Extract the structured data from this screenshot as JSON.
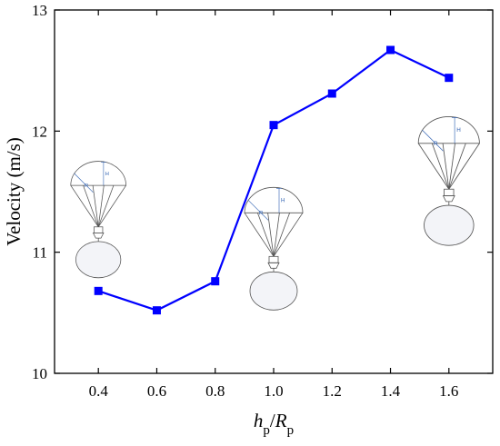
{
  "chart_data": {
    "type": "line",
    "x": [
      0.4,
      0.6,
      0.8,
      1.0,
      1.2,
      1.4,
      1.6
    ],
    "x_tick_labels": [
      "0.4",
      "0.6",
      "0.8",
      "1.0",
      "1.2",
      "1.4",
      "1.6"
    ],
    "xlim": [
      0.25,
      1.75
    ],
    "ylim": [
      10,
      13
    ],
    "y_ticks": [
      10,
      11,
      12,
      13
    ],
    "y_tick_labels": [
      "10",
      "11",
      "12",
      "13"
    ],
    "xlabel": {
      "h": "h",
      "p1": "p",
      "slash": "/",
      "R": "R",
      "p2": "p"
    },
    "ylabel": "Velocity (m/s)",
    "series": [
      {
        "values": [
          10.68,
          10.52,
          10.76,
          12.05,
          12.31,
          12.67,
          12.44
        ],
        "color": "#0000ff"
      }
    ],
    "grid": false,
    "legend": "none",
    "insets": [
      {
        "x": 0.4,
        "y": 11.48,
        "scale": 0.95,
        "labels": {
          "h": "H",
          "r": "R"
        }
      },
      {
        "x": 1.0,
        "y": 11.25,
        "scale": 1.0,
        "labels": {
          "h": "H",
          "r": "R"
        }
      },
      {
        "x": 1.6,
        "y": 11.82,
        "scale": 1.05,
        "labels": {
          "h": "H",
          "r": "R"
        }
      }
    ]
  }
}
